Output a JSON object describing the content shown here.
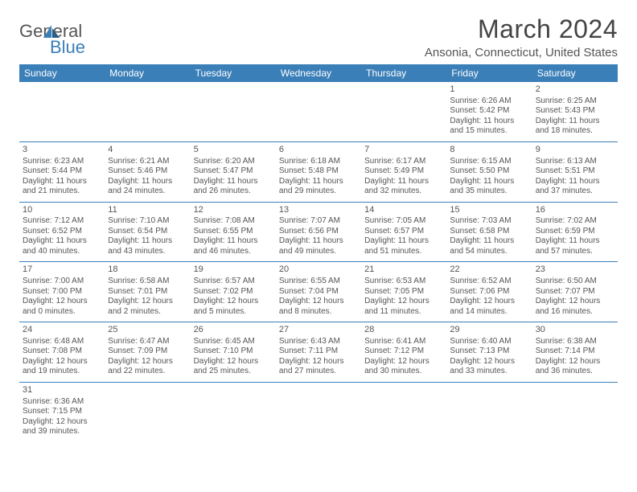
{
  "logo": {
    "text1": "General",
    "text2": "Blue"
  },
  "title": "March 2024",
  "location": "Ansonia, Connecticut, United States",
  "colors": {
    "header_bg": "#3b7fb8",
    "header_text": "#ffffff",
    "rule": "#3b7fb8",
    "body_text": "#555"
  },
  "weekdays": [
    "Sunday",
    "Monday",
    "Tuesday",
    "Wednesday",
    "Thursday",
    "Friday",
    "Saturday"
  ],
  "weeks": [
    [
      null,
      null,
      null,
      null,
      null,
      {
        "n": "1",
        "sr": "6:26 AM",
        "ss": "5:42 PM",
        "dl": "11 hours and 15 minutes."
      },
      {
        "n": "2",
        "sr": "6:25 AM",
        "ss": "5:43 PM",
        "dl": "11 hours and 18 minutes."
      }
    ],
    [
      {
        "n": "3",
        "sr": "6:23 AM",
        "ss": "5:44 PM",
        "dl": "11 hours and 21 minutes."
      },
      {
        "n": "4",
        "sr": "6:21 AM",
        "ss": "5:46 PM",
        "dl": "11 hours and 24 minutes."
      },
      {
        "n": "5",
        "sr": "6:20 AM",
        "ss": "5:47 PM",
        "dl": "11 hours and 26 minutes."
      },
      {
        "n": "6",
        "sr": "6:18 AM",
        "ss": "5:48 PM",
        "dl": "11 hours and 29 minutes."
      },
      {
        "n": "7",
        "sr": "6:17 AM",
        "ss": "5:49 PM",
        "dl": "11 hours and 32 minutes."
      },
      {
        "n": "8",
        "sr": "6:15 AM",
        "ss": "5:50 PM",
        "dl": "11 hours and 35 minutes."
      },
      {
        "n": "9",
        "sr": "6:13 AM",
        "ss": "5:51 PM",
        "dl": "11 hours and 37 minutes."
      }
    ],
    [
      {
        "n": "10",
        "sr": "7:12 AM",
        "ss": "6:52 PM",
        "dl": "11 hours and 40 minutes."
      },
      {
        "n": "11",
        "sr": "7:10 AM",
        "ss": "6:54 PM",
        "dl": "11 hours and 43 minutes."
      },
      {
        "n": "12",
        "sr": "7:08 AM",
        "ss": "6:55 PM",
        "dl": "11 hours and 46 minutes."
      },
      {
        "n": "13",
        "sr": "7:07 AM",
        "ss": "6:56 PM",
        "dl": "11 hours and 49 minutes."
      },
      {
        "n": "14",
        "sr": "7:05 AM",
        "ss": "6:57 PM",
        "dl": "11 hours and 51 minutes."
      },
      {
        "n": "15",
        "sr": "7:03 AM",
        "ss": "6:58 PM",
        "dl": "11 hours and 54 minutes."
      },
      {
        "n": "16",
        "sr": "7:02 AM",
        "ss": "6:59 PM",
        "dl": "11 hours and 57 minutes."
      }
    ],
    [
      {
        "n": "17",
        "sr": "7:00 AM",
        "ss": "7:00 PM",
        "dl": "12 hours and 0 minutes."
      },
      {
        "n": "18",
        "sr": "6:58 AM",
        "ss": "7:01 PM",
        "dl": "12 hours and 2 minutes."
      },
      {
        "n": "19",
        "sr": "6:57 AM",
        "ss": "7:02 PM",
        "dl": "12 hours and 5 minutes."
      },
      {
        "n": "20",
        "sr": "6:55 AM",
        "ss": "7:04 PM",
        "dl": "12 hours and 8 minutes."
      },
      {
        "n": "21",
        "sr": "6:53 AM",
        "ss": "7:05 PM",
        "dl": "12 hours and 11 minutes."
      },
      {
        "n": "22",
        "sr": "6:52 AM",
        "ss": "7:06 PM",
        "dl": "12 hours and 14 minutes."
      },
      {
        "n": "23",
        "sr": "6:50 AM",
        "ss": "7:07 PM",
        "dl": "12 hours and 16 minutes."
      }
    ],
    [
      {
        "n": "24",
        "sr": "6:48 AM",
        "ss": "7:08 PM",
        "dl": "12 hours and 19 minutes."
      },
      {
        "n": "25",
        "sr": "6:47 AM",
        "ss": "7:09 PM",
        "dl": "12 hours and 22 minutes."
      },
      {
        "n": "26",
        "sr": "6:45 AM",
        "ss": "7:10 PM",
        "dl": "12 hours and 25 minutes."
      },
      {
        "n": "27",
        "sr": "6:43 AM",
        "ss": "7:11 PM",
        "dl": "12 hours and 27 minutes."
      },
      {
        "n": "28",
        "sr": "6:41 AM",
        "ss": "7:12 PM",
        "dl": "12 hours and 30 minutes."
      },
      {
        "n": "29",
        "sr": "6:40 AM",
        "ss": "7:13 PM",
        "dl": "12 hours and 33 minutes."
      },
      {
        "n": "30",
        "sr": "6:38 AM",
        "ss": "7:14 PM",
        "dl": "12 hours and 36 minutes."
      }
    ],
    [
      {
        "n": "31",
        "sr": "6:36 AM",
        "ss": "7:15 PM",
        "dl": "12 hours and 39 minutes."
      },
      null,
      null,
      null,
      null,
      null,
      null
    ]
  ],
  "labels": {
    "sunrise": "Sunrise:",
    "sunset": "Sunset:",
    "daylight": "Daylight:"
  }
}
